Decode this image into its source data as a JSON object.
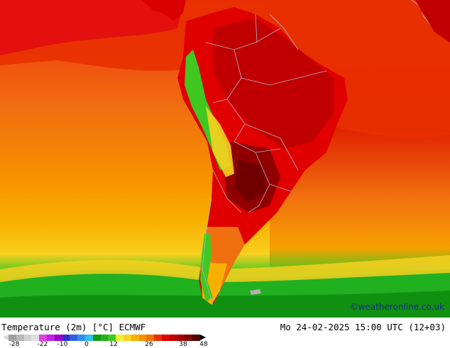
{
  "map": {
    "legend_title": "Temperature (2m) [°C] ECMWF",
    "run_time": "Mo 24-02-2025 15:00 UTC (12+03)",
    "credit": "©weatheronline.co.uk",
    "colorbar": {
      "tick_labels": [
        "-28",
        "-22",
        "-10",
        "0",
        "12",
        "26",
        "38",
        "48"
      ],
      "colors": [
        "#a0a0a0",
        "#b8b8b8",
        "#d0d0d0",
        "#e0e0e0",
        "#e040e0",
        "#c020e0",
        "#a000d0",
        "#3030c0",
        "#3060e0",
        "#3090f0",
        "#30c0f0",
        "#10a010",
        "#20b020",
        "#40c820",
        "#f0f030",
        "#f8d020",
        "#f8b000",
        "#f89000",
        "#f07000",
        "#e83000",
        "#e00000",
        "#c00000",
        "#a00000",
        "#800000",
        "#500000"
      ]
    },
    "colors": {
      "ocean_cool": "#f07010",
      "ocean_warm": "#e84000",
      "land_hot": "#e00000",
      "land_very_hot": "#a00000",
      "south_cold": "#20b020",
      "andes": "#40c820",
      "borders": "#b0b0c8"
    }
  }
}
